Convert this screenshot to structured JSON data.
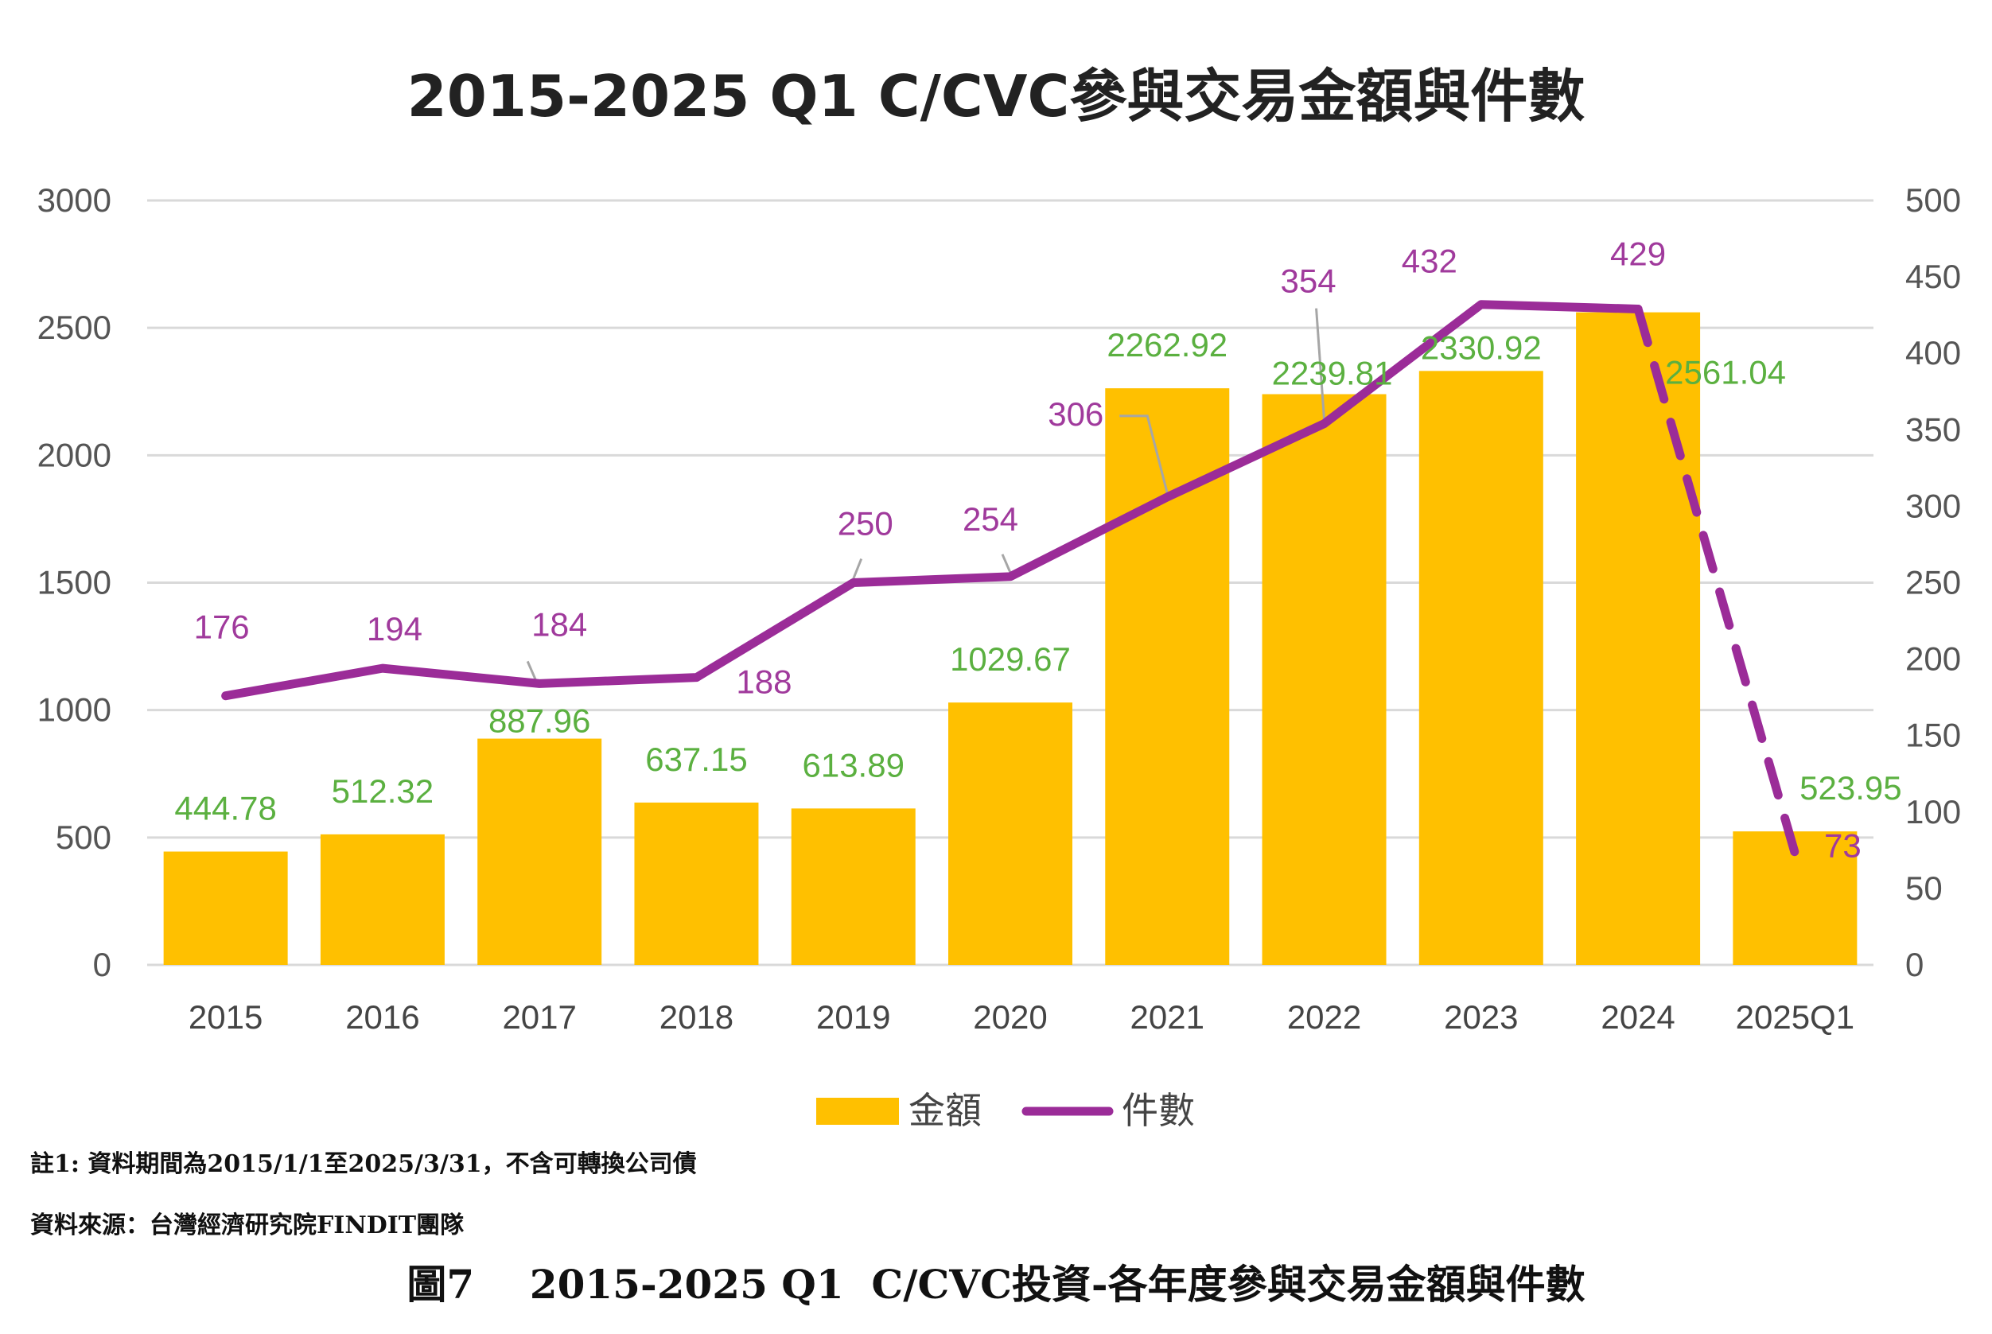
{
  "chart_data": {
    "type": "bar+line",
    "title": "2015-2025 Q1 C/CVC參與交易金額與件數",
    "categories": [
      "2015",
      "2016",
      "2017",
      "2018",
      "2019",
      "2020",
      "2021",
      "2022",
      "2023",
      "2024",
      "2025Q1"
    ],
    "series": [
      {
        "name": "金額",
        "type": "bar",
        "axis": "left",
        "color": "#FFC000",
        "values": [
          444.78,
          512.32,
          887.96,
          637.15,
          613.89,
          1029.67,
          2262.92,
          2239.81,
          2330.92,
          2561.04,
          523.95
        ],
        "labels": [
          "444.78",
          "512.32",
          "887.96",
          "637.15",
          "613.89",
          "1029.67",
          "2262.92",
          "2239.81",
          "2330.92",
          "2561.04",
          "523.95"
        ]
      },
      {
        "name": "件數",
        "type": "line",
        "axis": "right",
        "color": "#9B2C98",
        "dashed_last_segment": true,
        "values": [
          176,
          194,
          184,
          188,
          250,
          254,
          306,
          354,
          432,
          429,
          73
        ],
        "labels": [
          "176",
          "194",
          "184",
          "188",
          "250",
          "254",
          "306",
          "354",
          "432",
          "429",
          "73"
        ]
      }
    ],
    "y_left": {
      "min": 0,
      "max": 3000,
      "ticks": [
        "0",
        "500",
        "1000",
        "1500",
        "2000",
        "2500",
        "3000"
      ]
    },
    "y_right": {
      "min": 0,
      "max": 500,
      "ticks": [
        "0",
        "50",
        "100",
        "150",
        "200",
        "250",
        "300",
        "350",
        "400",
        "450",
        "500"
      ]
    },
    "grid": true,
    "legend": "bottom",
    "bar_label_color": "#5BB040",
    "line_label_color": "#A03A9C"
  },
  "notes": {
    "note1": "註1: 資料期間為2015/1/1至2025/3/31，不含可轉換公司債",
    "source": "資料來源：台灣經濟研究院FINDIT團隊"
  },
  "caption": "圖7    2015-2025 Q1  C/CVC投資-各年度參與交易金額與件數"
}
